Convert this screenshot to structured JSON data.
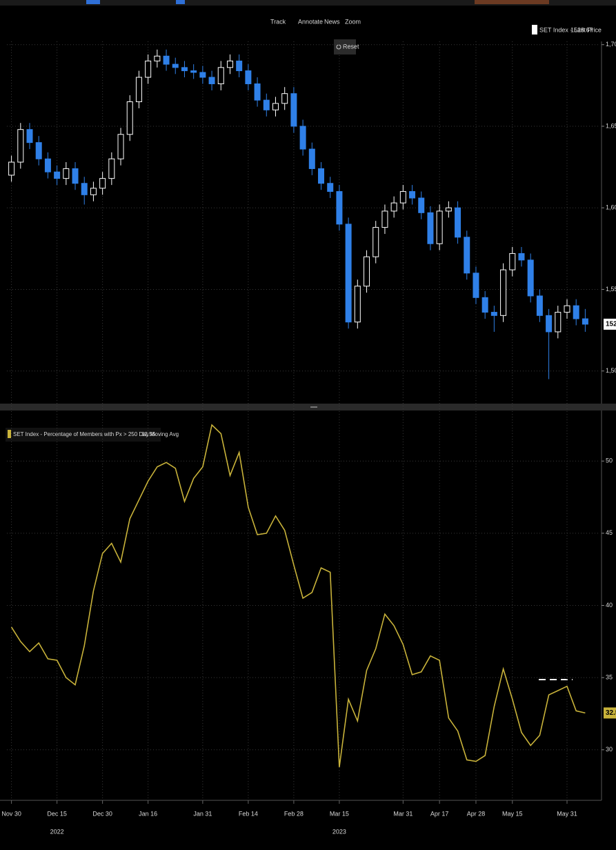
{
  "toolbar": {
    "track": "Track",
    "annotate": "Annotate",
    "news": "News",
    "zoom": "Zoom",
    "reset": "Reset"
  },
  "chart_data": [
    {
      "type": "candlestick",
      "legend": "SET Index - Last Price",
      "up_color": "#ffffff",
      "down_color": "#2f80e8",
      "ylim": [
        1480,
        1702
      ],
      "yticks": [
        {
          "value": 1700,
          "label": "1,700"
        },
        {
          "value": 1650,
          "label": "1,650"
        },
        {
          "value": 1600,
          "label": "1,600"
        },
        {
          "value": 1550,
          "label": "1,550"
        },
        {
          "value": 1500,
          "label": "1,500"
        }
      ],
      "grid": true,
      "open": [
        1620,
        1628,
        1648,
        1640,
        1630,
        1622,
        1618,
        1624,
        1615,
        1608,
        1612,
        1618,
        1630,
        1645,
        1665,
        1680,
        1690,
        1693,
        1688,
        1686,
        1684,
        1683,
        1680,
        1676,
        1686,
        1690,
        1684,
        1676,
        1666,
        1660,
        1664,
        1670,
        1650,
        1636,
        1624,
        1615,
        1610,
        1590,
        1530,
        1552,
        1570,
        1588,
        1598,
        1603,
        1610,
        1606,
        1597,
        1578,
        1598,
        1600,
        1582,
        1560,
        1545,
        1536,
        1534,
        1562,
        1572,
        1568,
        1546,
        1534,
        1524,
        1536,
        1540,
        1532
      ],
      "high": [
        1632,
        1652,
        1652,
        1644,
        1634,
        1626,
        1628,
        1628,
        1619,
        1616,
        1622,
        1634,
        1649,
        1669,
        1684,
        1694,
        1697,
        1697,
        1692,
        1690,
        1688,
        1687,
        1684,
        1690,
        1694,
        1694,
        1688,
        1680,
        1670,
        1668,
        1674,
        1674,
        1654,
        1640,
        1628,
        1619,
        1614,
        1594,
        1556,
        1574,
        1592,
        1602,
        1607,
        1614,
        1614,
        1610,
        1601,
        1602,
        1604,
        1604,
        1586,
        1564,
        1549,
        1540,
        1566,
        1576,
        1576,
        1572,
        1550,
        1538,
        1540,
        1544,
        1544,
        1538
      ],
      "low": [
        1616,
        1624,
        1636,
        1626,
        1618,
        1614,
        1614,
        1611,
        1602,
        1604,
        1608,
        1614,
        1626,
        1641,
        1661,
        1676,
        1686,
        1684,
        1682,
        1680,
        1679,
        1676,
        1672,
        1672,
        1682,
        1680,
        1672,
        1662,
        1656,
        1656,
        1660,
        1646,
        1632,
        1620,
        1611,
        1606,
        1586,
        1526,
        1526,
        1548,
        1566,
        1584,
        1594,
        1599,
        1602,
        1593,
        1574,
        1574,
        1594,
        1578,
        1556,
        1541,
        1532,
        1524,
        1530,
        1558,
        1564,
        1542,
        1530,
        1495,
        1520,
        1532,
        1528,
        1524
      ],
      "close": [
        1628,
        1648,
        1640,
        1630,
        1622,
        1618,
        1624,
        1615,
        1608,
        1612,
        1618,
        1630,
        1645,
        1665,
        1680,
        1690,
        1693,
        1688,
        1686,
        1684,
        1683,
        1680,
        1676,
        1686,
        1690,
        1684,
        1676,
        1666,
        1660,
        1664,
        1670,
        1650,
        1636,
        1624,
        1615,
        1610,
        1590,
        1530,
        1552,
        1570,
        1588,
        1598,
        1603,
        1610,
        1606,
        1597,
        1578,
        1598,
        1600,
        1582,
        1560,
        1545,
        1536,
        1534,
        1562,
        1572,
        1568,
        1546,
        1534,
        1524,
        1536,
        1540,
        1532,
        1528.67
      ]
    },
    {
      "type": "line",
      "categories": [
        "Nov 30",
        null,
        null,
        null,
        null,
        "Dec 15",
        null,
        null,
        null,
        null,
        "Dec 30",
        null,
        null,
        null,
        null,
        "Jan 16",
        null,
        null,
        null,
        null,
        null,
        "Jan 31",
        null,
        null,
        null,
        null,
        "Feb 14",
        null,
        null,
        null,
        null,
        "Feb 28",
        null,
        null,
        null,
        null,
        "Mar 15",
        null,
        null,
        null,
        null,
        null,
        null,
        "Mar 31",
        null,
        null,
        null,
        "Apr 17",
        null,
        null,
        null,
        "Apr 28",
        null,
        null,
        null,
        "May 15",
        null,
        null,
        null,
        null,
        null,
        "May 31",
        null,
        null
      ],
      "x_sublabels": [
        null,
        null,
        null,
        null,
        null,
        "2022",
        null,
        null,
        null,
        null,
        null,
        null,
        null,
        null,
        null,
        null,
        null,
        null,
        null,
        null,
        null,
        null,
        null,
        null,
        null,
        null,
        null,
        null,
        null,
        null,
        null,
        null,
        null,
        null,
        null,
        null,
        "2023",
        null,
        null,
        null,
        null,
        null,
        null,
        null,
        null,
        null,
        null,
        null,
        null,
        null,
        null,
        null,
        null,
        null,
        null,
        null,
        null,
        null,
        null,
        null,
        null,
        null,
        null,
        null
      ],
      "series": [
        {
          "name": "SET Index - Percentage of Members with Px > 250 Day Moving Avg",
          "color": "#c9b33a",
          "values": [
            38.5,
            37.5,
            36.8,
            37.4,
            36.3,
            36.2,
            35,
            34.5,
            37.2,
            41,
            43.6,
            44.3,
            43,
            46,
            47.3,
            48.6,
            49.6,
            49.9,
            49.5,
            47.2,
            48.8,
            49.6,
            52.5,
            51.9,
            49,
            50.6,
            46.8,
            44.9,
            45,
            46.2,
            45.2,
            42.8,
            40.5,
            40.9,
            42.6,
            42.3,
            28.8,
            33.5,
            32,
            35.5,
            37,
            39.4,
            38.6,
            37.3,
            35.2,
            35.4,
            36.5,
            36.2,
            32.2,
            31.3,
            29.3,
            29.2,
            29.6,
            33,
            35.6,
            33.5,
            31.2,
            30.3,
            31,
            33.8,
            34.1,
            34.4,
            32.7,
            32.55
          ]
        }
      ],
      "ylim": [
        26.5,
        53.5
      ],
      "yticks": [
        50,
        45,
        40,
        35,
        30
      ],
      "grid": true
    }
  ]
}
